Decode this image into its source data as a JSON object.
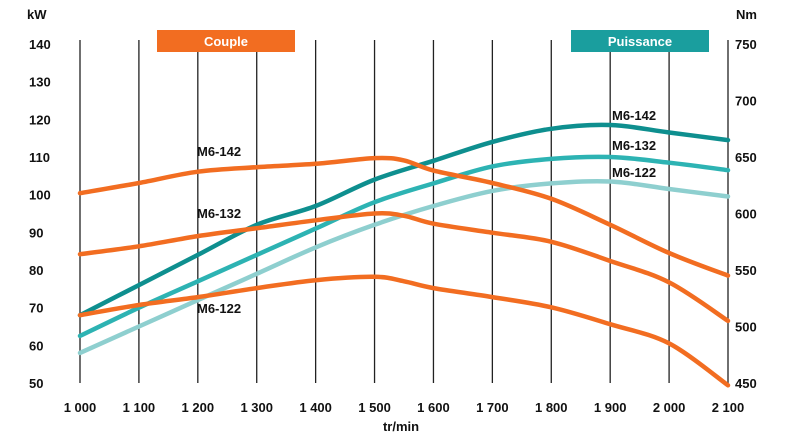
{
  "chart_data": {
    "type": "line",
    "xlabel": "tr/min",
    "x_ticks": [
      "1 000",
      "1 100",
      "1 200",
      "1 300",
      "1 400",
      "1 500",
      "1 600",
      "1 700",
      "1 800",
      "1 900",
      "2 000",
      "2 100"
    ],
    "xlim": [
      1000,
      2100
    ],
    "left_axis": {
      "unit": "kW",
      "ylim": [
        50,
        140
      ],
      "ticks": [
        50,
        60,
        70,
        80,
        90,
        100,
        110,
        120,
        130,
        140
      ]
    },
    "right_axis": {
      "unit": "Nm",
      "ylim": [
        450,
        750
      ],
      "ticks": [
        450,
        500,
        550,
        600,
        650,
        700,
        750
      ]
    },
    "legend": {
      "couple": "Couple",
      "puissance": "Puissance"
    },
    "colors": {
      "couple": "#f26d21",
      "power_142": "#0e8f8f",
      "power_132": "#2db3b3",
      "power_122": "#8ecfcf"
    },
    "power_series": [
      {
        "name": "M6-142",
        "axis": "left",
        "color": "#0e8f8f",
        "x": [
          1000,
          1100,
          1200,
          1300,
          1400,
          1500,
          1600,
          1700,
          1800,
          1900,
          2000,
          2100
        ],
        "y": [
          68,
          76,
          84,
          92,
          97,
          104,
          109,
          114,
          117.5,
          118.5,
          116.5,
          114.5
        ]
      },
      {
        "name": "M6-132",
        "axis": "left",
        "color": "#2db3b3",
        "x": [
          1000,
          1100,
          1200,
          1300,
          1400,
          1500,
          1600,
          1700,
          1800,
          1900,
          2000,
          2100
        ],
        "y": [
          62.5,
          70,
          77,
          84,
          91,
          98,
          103,
          107.5,
          109.5,
          110,
          108.5,
          106.5
        ]
      },
      {
        "name": "M6-122",
        "axis": "left",
        "color": "#8ecfcf",
        "x": [
          1000,
          1100,
          1200,
          1300,
          1400,
          1500,
          1600,
          1700,
          1800,
          1900,
          2000,
          2100
        ],
        "y": [
          58,
          65,
          72,
          79,
          86,
          92,
          97,
          101,
          103,
          103.5,
          101.5,
          99.5
        ]
      }
    ],
    "torque_series": [
      {
        "name": "M6-142",
        "axis": "right",
        "color": "#f26d21",
        "x": [
          1000,
          1100,
          1200,
          1300,
          1400,
          1500,
          1550,
          1600,
          1700,
          1800,
          1900,
          2000,
          2100
        ],
        "y": [
          618,
          627,
          637,
          641,
          644,
          649,
          647,
          638,
          627,
          613,
          590,
          565,
          545
        ]
      },
      {
        "name": "M6-132",
        "axis": "right",
        "color": "#f26d21",
        "x": [
          1000,
          1100,
          1200,
          1300,
          1400,
          1500,
          1550,
          1600,
          1700,
          1800,
          1900,
          2000,
          2100
        ],
        "y": [
          564,
          571,
          580,
          587,
          594,
          600,
          598,
          591,
          583,
          575,
          558,
          539,
          505
        ]
      },
      {
        "name": "M6-122",
        "axis": "right",
        "color": "#f26d21",
        "x": [
          1000,
          1100,
          1200,
          1300,
          1400,
          1500,
          1550,
          1600,
          1700,
          1800,
          1900,
          2000,
          2100
        ],
        "y": [
          510,
          519,
          526,
          534,
          541,
          544,
          540,
          534,
          526,
          517,
          502,
          485,
          448
        ]
      }
    ]
  }
}
